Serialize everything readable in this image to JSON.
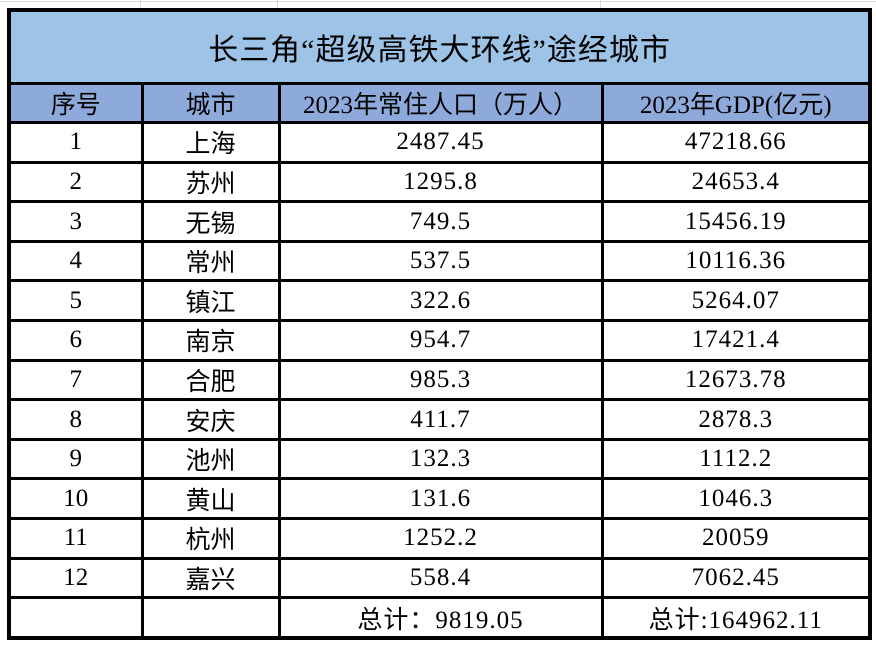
{
  "colors": {
    "title_background": "#9DC3E6",
    "header_background": "#8EAADB",
    "table_border": "#000000",
    "sheet_gridline": "#D9D9D9"
  },
  "table": {
    "title": "长三角“超级高铁大环线”途经城市",
    "headers": [
      "序号",
      "城市",
      "2023年常住人口（万人）",
      "2023年GDP(亿元)"
    ],
    "rows": [
      {
        "seq": "1",
        "city": "上海",
        "population": "2487.45",
        "gdp": "47218.66"
      },
      {
        "seq": "2",
        "city": "苏州",
        "population": "1295.8",
        "gdp": "24653.4"
      },
      {
        "seq": "3",
        "city": "无锡",
        "population": "749.5",
        "gdp": "15456.19"
      },
      {
        "seq": "4",
        "city": "常州",
        "population": "537.5",
        "gdp": "10116.36"
      },
      {
        "seq": "5",
        "city": "镇江",
        "population": "322.6",
        "gdp": "5264.07"
      },
      {
        "seq": "6",
        "city": "南京",
        "population": "954.7",
        "gdp": "17421.4"
      },
      {
        "seq": "7",
        "city": "合肥",
        "population": "985.3",
        "gdp": "12673.78"
      },
      {
        "seq": "8",
        "city": "安庆",
        "population": "411.7",
        "gdp": "2878.3"
      },
      {
        "seq": "9",
        "city": "池州",
        "population": "132.3",
        "gdp": "1112.2"
      },
      {
        "seq": "10",
        "city": "黄山",
        "population": "131.6",
        "gdp": "1046.3"
      },
      {
        "seq": "11",
        "city": "杭州",
        "population": "1252.2",
        "gdp": "20059"
      },
      {
        "seq": "12",
        "city": "嘉兴",
        "population": "558.4",
        "gdp": "7062.45"
      }
    ],
    "totals": {
      "population_label": "总计：9819.05",
      "gdp_label": "总计:164962.11"
    }
  }
}
